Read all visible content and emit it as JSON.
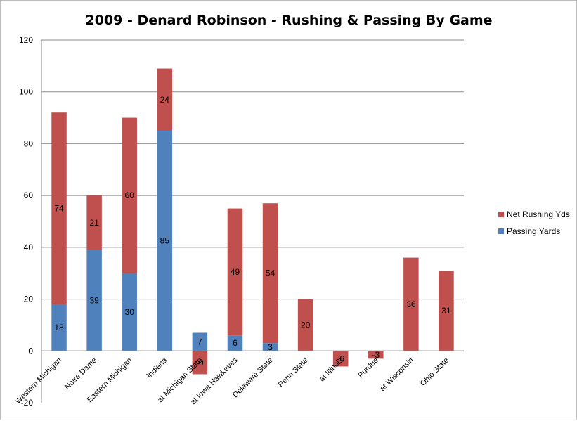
{
  "chart_data": {
    "type": "bar",
    "stacked": true,
    "title": "2009 - Denard Robinson - Rushing & Passing By Game",
    "xlabel": "",
    "ylabel": "",
    "ylim": [
      -20,
      120
    ],
    "ytick_step": 20,
    "grid": true,
    "legend_position": "right",
    "categories": [
      "Western Michigan",
      "Notre Dame",
      "Eastern Michigan",
      "Indiana",
      "at Michigan State",
      "at Iowa Hawkeyes",
      "Delaware State",
      "Penn State",
      "at Illinois",
      "Purdue",
      "at Wisconsin",
      "Ohio State"
    ],
    "series": [
      {
        "name": "Passing Yards",
        "color": "#4f81bd",
        "values": [
          18,
          39,
          30,
          85,
          7,
          6,
          3,
          0,
          0,
          0,
          0,
          0
        ]
      },
      {
        "name": "Net Rushing Yds",
        "color": "#c0504d",
        "values": [
          74,
          21,
          60,
          24,
          -9,
          49,
          54,
          20,
          -6,
          -3,
          36,
          31
        ]
      }
    ],
    "legend_order": [
      "Net Rushing Yds",
      "Passing Yards"
    ]
  }
}
